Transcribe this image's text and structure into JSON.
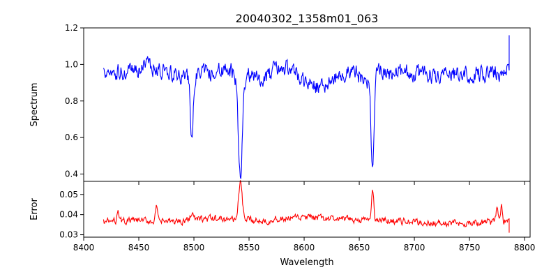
{
  "chart_data": {
    "type": "line",
    "title": "20040302_1358m01_063",
    "xlabel": "Wavelength",
    "xlim": [
      8400,
      8805
    ],
    "x_ticks": [
      8400,
      8450,
      8500,
      8550,
      8600,
      8650,
      8700,
      8750,
      8800
    ],
    "grid": false,
    "panels": [
      {
        "id": "spectrum",
        "ylabel": "Spectrum",
        "ylim": [
          0.36,
          1.2
        ],
        "y_ticks": [
          0.4,
          0.6,
          0.8,
          1.0,
          1.2
        ],
        "y_tick_labels": [
          "0.4",
          "0.6",
          "0.8",
          "1.0",
          "1.2"
        ],
        "series": [
          {
            "color": "#0000ff",
            "x_range": [
              8418,
              8786
            ],
            "continuum": [
              [
                8418,
                0.96
              ],
              [
                8440,
                0.95
              ],
              [
                8460,
                0.99
              ],
              [
                8475,
                0.96
              ],
              [
                8490,
                0.93
              ],
              [
                8520,
                0.96
              ],
              [
                8530,
                0.97
              ],
              [
                8560,
                0.92
              ],
              [
                8575,
                0.97
              ],
              [
                8590,
                0.98
              ],
              [
                8600,
                0.91
              ],
              [
                8610,
                0.87
              ],
              [
                8630,
                0.93
              ],
              [
                8645,
                0.97
              ],
              [
                8655,
                0.91
              ],
              [
                8670,
                0.96
              ],
              [
                8700,
                0.95
              ],
              [
                8720,
                0.94
              ],
              [
                8740,
                0.94
              ],
              [
                8760,
                0.95
              ],
              [
                8786,
                0.96
              ]
            ],
            "absorption_lines": [
              {
                "center": 8498.0,
                "depth": 0.37,
                "width": 1.2
              },
              {
                "center": 8542.1,
                "depth": 0.55,
                "width": 1.9
              },
              {
                "center": 8662.1,
                "depth": 0.48,
                "width": 1.4
              }
            ],
            "noise_amplitude": 0.05,
            "endpoint": [
              8786,
              1.16
            ]
          }
        ]
      },
      {
        "id": "error",
        "ylabel": "Error",
        "ylim": [
          0.0288,
          0.0565
        ],
        "y_ticks": [
          0.03,
          0.04,
          0.05
        ],
        "y_tick_labels": [
          "0.03",
          "0.04",
          "0.05"
        ],
        "series": [
          {
            "color": "#ff0000",
            "x_range": [
              8418,
              8786
            ],
            "continuum": [
              [
                8418,
                0.0365
              ],
              [
                8450,
                0.037
              ],
              [
                8480,
                0.0365
              ],
              [
                8500,
                0.0375
              ],
              [
                8520,
                0.038
              ],
              [
                8560,
                0.037
              ],
              [
                8600,
                0.0385
              ],
              [
                8640,
                0.0375
              ],
              [
                8680,
                0.037
              ],
              [
                8720,
                0.0355
              ],
              [
                8760,
                0.036
              ],
              [
                8786,
                0.037
              ]
            ],
            "emission_peaks": [
              {
                "center": 8431,
                "height": 0.0065,
                "width": 0.8
              },
              {
                "center": 8466,
                "height": 0.0075,
                "width": 0.8
              },
              {
                "center": 8498,
                "height": 0.004,
                "width": 1.2
              },
              {
                "center": 8542.1,
                "height": 0.0185,
                "width": 1.6
              },
              {
                "center": 8662.1,
                "height": 0.015,
                "width": 1.0
              },
              {
                "center": 8775,
                "height": 0.0065,
                "width": 0.9
              },
              {
                "center": 8779,
                "height": 0.0095,
                "width": 0.7
              }
            ],
            "noise_amplitude": 0.0018,
            "endpoint": [
              8786,
              0.031
            ]
          }
        ]
      }
    ]
  }
}
